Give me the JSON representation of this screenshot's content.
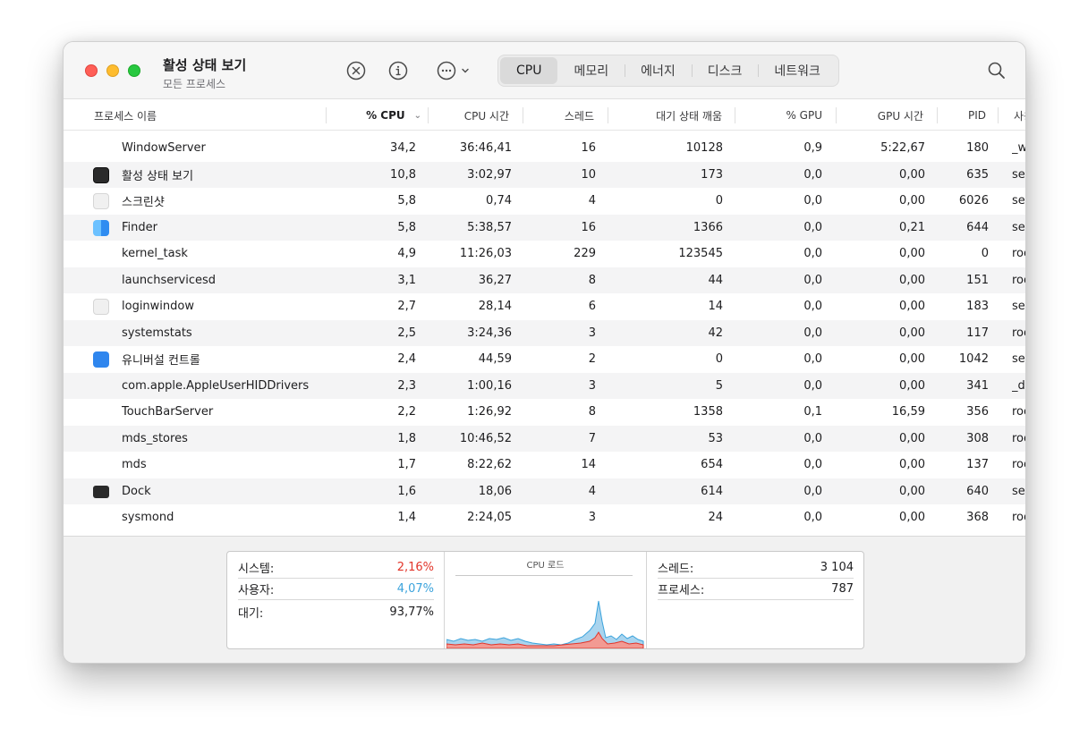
{
  "window": {
    "title": "활성 상태 보기",
    "subtitle": "모든 프로세스"
  },
  "toolbar": {
    "stop_icon": "xmark-circle-icon",
    "info_icon": "info-circle-icon",
    "more_icon": "ellipsis-circle-icon",
    "search_icon": "magnifying-glass-icon",
    "tabs": [
      {
        "label": "CPU",
        "active": true
      },
      {
        "label": "메모리",
        "active": false
      },
      {
        "label": "에너지",
        "active": false
      },
      {
        "label": "디스크",
        "active": false
      },
      {
        "label": "네트워크",
        "active": false
      }
    ]
  },
  "table": {
    "columns": [
      "프로세스 이름",
      "% CPU",
      "CPU 시간",
      "스레드",
      "대기 상태 깨움",
      "% GPU",
      "GPU 시간",
      "PID",
      "사용자"
    ],
    "sorted_column": "% CPU",
    "rows": [
      {
        "icon": "none",
        "name": "WindowServer",
        "cpu": "34,2",
        "cpu_time": "36:46,41",
        "threads": "16",
        "wakeups": "10128",
        "gpu": "0,9",
        "gpu_time": "5:22,67",
        "pid": "180",
        "user": "_w"
      },
      {
        "icon": "activity-monitor-icon",
        "name": "활성 상태 보기",
        "cpu": "10,8",
        "cpu_time": "3:02,97",
        "threads": "10",
        "wakeups": "173",
        "gpu": "0,0",
        "gpu_time": "0,00",
        "pid": "635",
        "user": "ser"
      },
      {
        "icon": "screenshot-icon",
        "name": "스크린샷",
        "cpu": "5,8",
        "cpu_time": "0,74",
        "threads": "4",
        "wakeups": "0",
        "gpu": "0,0",
        "gpu_time": "0,00",
        "pid": "6026",
        "user": "ser"
      },
      {
        "icon": "finder-icon",
        "name": "Finder",
        "cpu": "5,8",
        "cpu_time": "5:38,57",
        "threads": "16",
        "wakeups": "1366",
        "gpu": "0,0",
        "gpu_time": "0,21",
        "pid": "644",
        "user": "ser"
      },
      {
        "icon": "none",
        "name": "kernel_task",
        "cpu": "4,9",
        "cpu_time": "11:26,03",
        "threads": "229",
        "wakeups": "123545",
        "gpu": "0,0",
        "gpu_time": "0,00",
        "pid": "0",
        "user": "roo"
      },
      {
        "icon": "none",
        "name": "launchservicesd",
        "cpu": "3,1",
        "cpu_time": "36,27",
        "threads": "8",
        "wakeups": "44",
        "gpu": "0,0",
        "gpu_time": "0,00",
        "pid": "151",
        "user": "roo"
      },
      {
        "icon": "loginwindow-icon",
        "name": "loginwindow",
        "cpu": "2,7",
        "cpu_time": "28,14",
        "threads": "6",
        "wakeups": "14",
        "gpu": "0,0",
        "gpu_time": "0,00",
        "pid": "183",
        "user": "ser"
      },
      {
        "icon": "none",
        "name": "systemstats",
        "cpu": "2,5",
        "cpu_time": "3:24,36",
        "threads": "3",
        "wakeups": "42",
        "gpu": "0,0",
        "gpu_time": "0,00",
        "pid": "117",
        "user": "roo"
      },
      {
        "icon": "universal-control-icon",
        "name": "유니버설 컨트롤",
        "cpu": "2,4",
        "cpu_time": "44,59",
        "threads": "2",
        "wakeups": "0",
        "gpu": "0,0",
        "gpu_time": "0,00",
        "pid": "1042",
        "user": "ser"
      },
      {
        "icon": "none",
        "name": "com.apple.AppleUserHIDDrivers",
        "cpu": "2,3",
        "cpu_time": "1:00,16",
        "threads": "3",
        "wakeups": "5",
        "gpu": "0,0",
        "gpu_time": "0,00",
        "pid": "341",
        "user": "_dr"
      },
      {
        "icon": "none",
        "name": "TouchBarServer",
        "cpu": "2,2",
        "cpu_time": "1:26,92",
        "threads": "8",
        "wakeups": "1358",
        "gpu": "0,1",
        "gpu_time": "16,59",
        "pid": "356",
        "user": "roo"
      },
      {
        "icon": "none",
        "name": "mds_stores",
        "cpu": "1,8",
        "cpu_time": "10:46,52",
        "threads": "7",
        "wakeups": "53",
        "gpu": "0,0",
        "gpu_time": "0,00",
        "pid": "308",
        "user": "roo"
      },
      {
        "icon": "none",
        "name": "mds",
        "cpu": "1,7",
        "cpu_time": "8:22,62",
        "threads": "14",
        "wakeups": "654",
        "gpu": "0,0",
        "gpu_time": "0,00",
        "pid": "137",
        "user": "roo"
      },
      {
        "icon": "dock-icon",
        "name": "Dock",
        "cpu": "1,6",
        "cpu_time": "18,06",
        "threads": "4",
        "wakeups": "614",
        "gpu": "0,0",
        "gpu_time": "0,00",
        "pid": "640",
        "user": "ser"
      },
      {
        "icon": "none",
        "name": "sysmond",
        "cpu": "1,4",
        "cpu_time": "2:24,05",
        "threads": "3",
        "wakeups": "24",
        "gpu": "0,0",
        "gpu_time": "0,00",
        "pid": "368",
        "user": "roo"
      }
    ]
  },
  "footer": {
    "system_label": "시스템:",
    "system_value": "2,16%",
    "user_label": "사용자:",
    "user_value": "4,07%",
    "idle_label": "대기:",
    "idle_value": "93,77%",
    "load_title": "CPU 로드",
    "threads_label": "스레드:",
    "threads_value": "3 104",
    "processes_label": "프로세스:",
    "processes_value": "787",
    "colors": {
      "system": "#e2352a",
      "user": "#3ba3dc"
    }
  }
}
